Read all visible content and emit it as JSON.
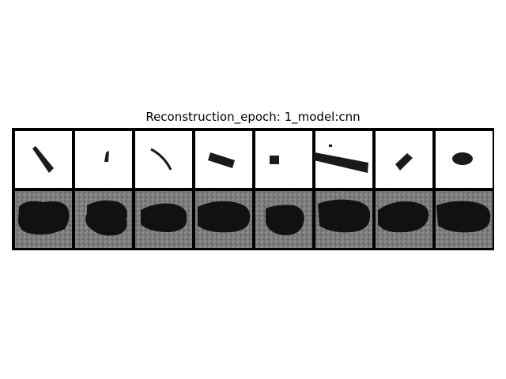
{
  "figure": {
    "title": "Reconstruction_epoch: 1_model:cnn",
    "background_color": "#ffffff",
    "border_color": "#000000"
  },
  "grid": {
    "rows": [
      {
        "name": "original-row",
        "tile_background": "#ffffff"
      },
      {
        "name": "reconstruction-row",
        "tile_background": "#808080"
      }
    ],
    "columns": 8
  }
}
